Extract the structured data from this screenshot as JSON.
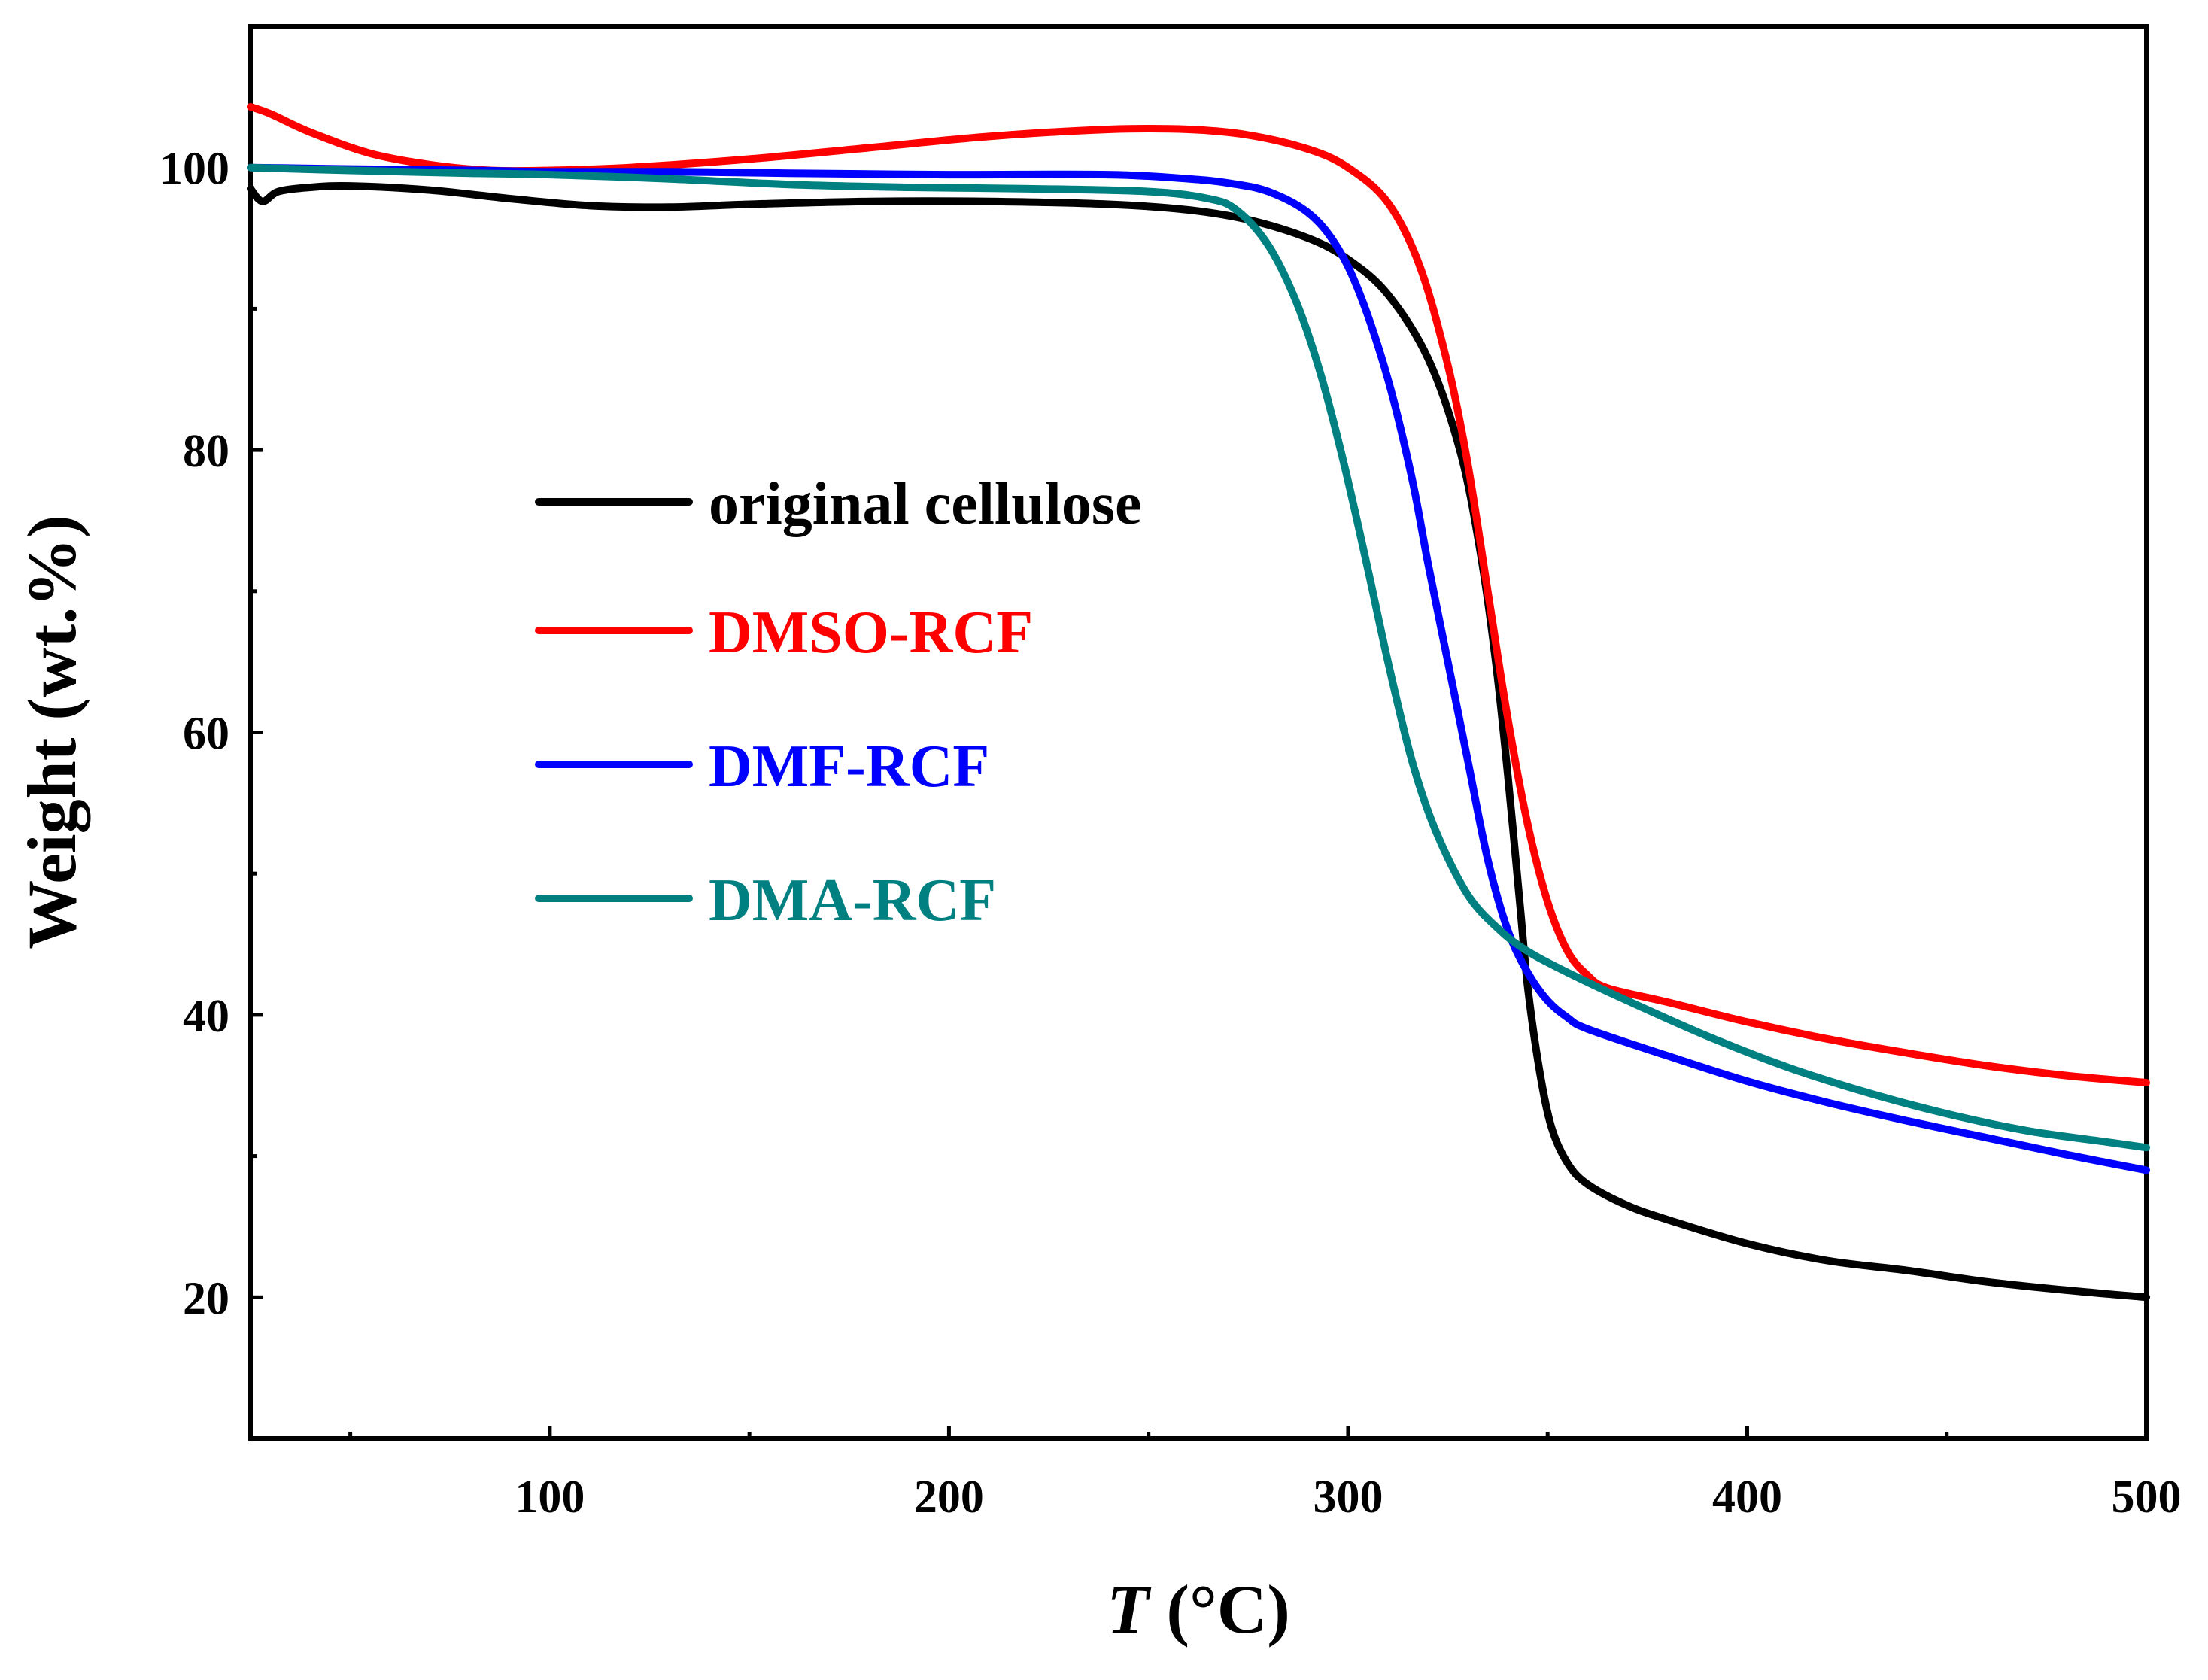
{
  "chart_data": {
    "type": "line",
    "title": "",
    "xlabel_italic": "T",
    "xlabel_rest": " (°C)",
    "ylabel": "Weight (wt.%)",
    "xlim": [
      25,
      500
    ],
    "ylim": [
      10,
      110
    ],
    "xticks": [
      100,
      200,
      300,
      400,
      500
    ],
    "yticks": [
      20,
      40,
      60,
      80,
      100
    ],
    "legend_position": "center-left",
    "series": [
      {
        "name": "original cellulose",
        "color": "#000000",
        "points": [
          [
            25,
            98.5
          ],
          [
            28,
            97.6
          ],
          [
            32,
            98.3
          ],
          [
            40,
            98.6
          ],
          [
            50,
            98.7
          ],
          [
            70,
            98.4
          ],
          [
            90,
            97.8
          ],
          [
            110,
            97.3
          ],
          [
            130,
            97.2
          ],
          [
            150,
            97.4
          ],
          [
            180,
            97.6
          ],
          [
            210,
            97.6
          ],
          [
            240,
            97.4
          ],
          [
            260,
            97.0
          ],
          [
            275,
            96.3
          ],
          [
            290,
            95.0
          ],
          [
            300,
            93.5
          ],
          [
            310,
            91.0
          ],
          [
            320,
            86.5
          ],
          [
            328,
            80.0
          ],
          [
            333,
            73.0
          ],
          [
            337,
            65.0
          ],
          [
            340,
            57.0
          ],
          [
            343,
            48.0
          ],
          [
            345,
            42.0
          ],
          [
            348,
            36.0
          ],
          [
            351,
            32.0
          ],
          [
            355,
            29.5
          ],
          [
            360,
            28.0
          ],
          [
            370,
            26.5
          ],
          [
            380,
            25.5
          ],
          [
            400,
            23.8
          ],
          [
            420,
            22.6
          ],
          [
            440,
            21.9
          ],
          [
            460,
            21.1
          ],
          [
            480,
            20.5
          ],
          [
            500,
            20.0
          ]
        ]
      },
      {
        "name": "DMSO-RCF",
        "color": "#ff0000",
        "points": [
          [
            25,
            104.3
          ],
          [
            30,
            103.8
          ],
          [
            40,
            102.5
          ],
          [
            55,
            101.0
          ],
          [
            70,
            100.2
          ],
          [
            85,
            99.8
          ],
          [
            100,
            99.8
          ],
          [
            120,
            100.0
          ],
          [
            150,
            100.6
          ],
          [
            180,
            101.4
          ],
          [
            210,
            102.2
          ],
          [
            240,
            102.7
          ],
          [
            260,
            102.7
          ],
          [
            275,
            102.3
          ],
          [
            290,
            101.3
          ],
          [
            300,
            100.0
          ],
          [
            310,
            97.5
          ],
          [
            318,
            93.0
          ],
          [
            325,
            86.0
          ],
          [
            330,
            79.0
          ],
          [
            335,
            70.0
          ],
          [
            340,
            61.0
          ],
          [
            345,
            53.5
          ],
          [
            350,
            48.0
          ],
          [
            355,
            44.5
          ],
          [
            360,
            42.8
          ],
          [
            365,
            41.9
          ],
          [
            380,
            40.9
          ],
          [
            400,
            39.5
          ],
          [
            420,
            38.3
          ],
          [
            440,
            37.3
          ],
          [
            460,
            36.4
          ],
          [
            480,
            35.7
          ],
          [
            500,
            35.2
          ]
        ]
      },
      {
        "name": "DMF-RCF",
        "color": "#0000ff",
        "points": [
          [
            25,
            100.0
          ],
          [
            50,
            99.9
          ],
          [
            80,
            99.8
          ],
          [
            100,
            99.7
          ],
          [
            130,
            99.7
          ],
          [
            160,
            99.6
          ],
          [
            200,
            99.5
          ],
          [
            240,
            99.5
          ],
          [
            260,
            99.2
          ],
          [
            270,
            98.9
          ],
          [
            280,
            98.3
          ],
          [
            290,
            96.8
          ],
          [
            297,
            94.5
          ],
          [
            303,
            91.0
          ],
          [
            310,
            85.0
          ],
          [
            316,
            78.0
          ],
          [
            320,
            72.0
          ],
          [
            325,
            65.0
          ],
          [
            330,
            58.0
          ],
          [
            335,
            51.0
          ],
          [
            340,
            46.0
          ],
          [
            345,
            43.0
          ],
          [
            350,
            41.0
          ],
          [
            355,
            39.8
          ],
          [
            360,
            39.0
          ],
          [
            380,
            37.1
          ],
          [
            400,
            35.3
          ],
          [
            420,
            33.8
          ],
          [
            440,
            32.5
          ],
          [
            460,
            31.3
          ],
          [
            480,
            30.1
          ],
          [
            500,
            29.0
          ]
        ]
      },
      {
        "name": "DMA-RCF",
        "color": "#008080",
        "points": [
          [
            25,
            100.0
          ],
          [
            50,
            99.8
          ],
          [
            80,
            99.6
          ],
          [
            100,
            99.5
          ],
          [
            130,
            99.2
          ],
          [
            160,
            98.8
          ],
          [
            190,
            98.6
          ],
          [
            220,
            98.5
          ],
          [
            250,
            98.3
          ],
          [
            265,
            97.8
          ],
          [
            272,
            97.0
          ],
          [
            280,
            94.5
          ],
          [
            287,
            90.5
          ],
          [
            293,
            85.5
          ],
          [
            299,
            79.0
          ],
          [
            305,
            71.5
          ],
          [
            310,
            65.0
          ],
          [
            316,
            58.0
          ],
          [
            322,
            53.0
          ],
          [
            330,
            48.5
          ],
          [
            338,
            46.0
          ],
          [
            345,
            44.5
          ],
          [
            355,
            43.0
          ],
          [
            370,
            41.0
          ],
          [
            390,
            38.5
          ],
          [
            410,
            36.3
          ],
          [
            430,
            34.5
          ],
          [
            450,
            33.0
          ],
          [
            470,
            31.8
          ],
          [
            490,
            31.0
          ],
          [
            500,
            30.6
          ]
        ]
      }
    ]
  }
}
